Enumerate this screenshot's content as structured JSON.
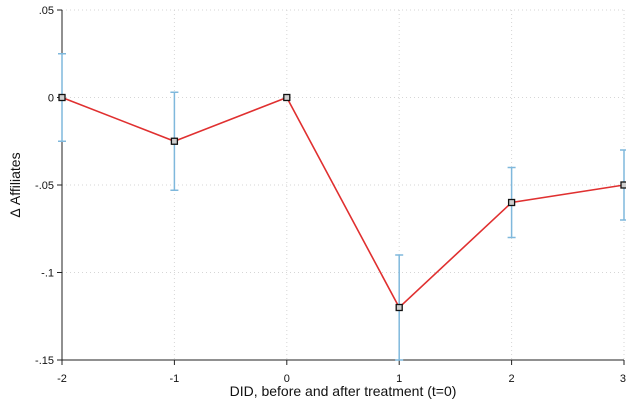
{
  "chart_data": {
    "type": "line",
    "title": "",
    "xlabel": "DID, before and after treatment (t=0)",
    "ylabel": "Δ Affiliates",
    "x": [
      -2,
      -1,
      0,
      1,
      2,
      3
    ],
    "x_tick_labels": [
      "-2",
      "-1",
      "0",
      "1",
      "2",
      "3"
    ],
    "y_ticks": [
      0.05,
      0,
      -0.05,
      -0.1,
      -0.15
    ],
    "y_tick_labels": [
      ".05",
      "0",
      "-.05",
      "-.1",
      "-.15"
    ],
    "xlim": [
      -2,
      3
    ],
    "ylim": [
      -0.15,
      0.05
    ],
    "grid": true,
    "series": [
      {
        "values": [
          0,
          -0.025,
          0,
          -0.12,
          -0.06,
          -0.05
        ],
        "ci_low": [
          -0.025,
          -0.053,
          0,
          -0.15,
          -0.08,
          -0.07
        ],
        "ci_high": [
          0.025,
          0.003,
          0,
          -0.09,
          -0.04,
          -0.03
        ],
        "color": "#e03030",
        "marker": "square",
        "ci_color": "#7fb8dc"
      }
    ]
  }
}
